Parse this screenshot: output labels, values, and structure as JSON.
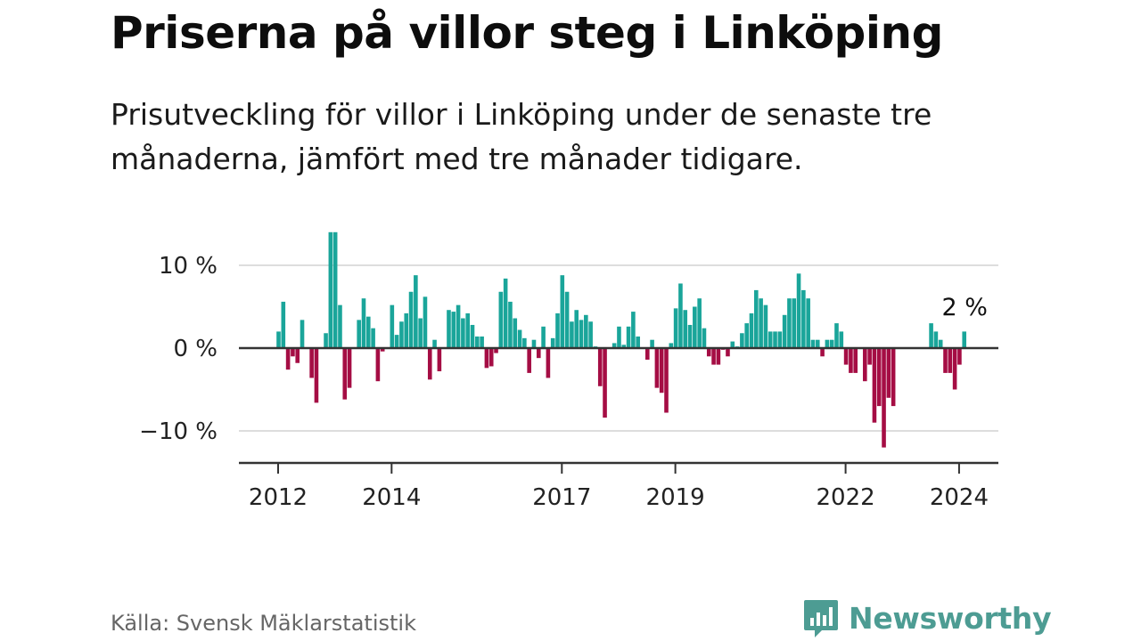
{
  "header": {
    "title": "Priserna på villor steg i Linköping",
    "subtitle": "Prisutveckling för villor i Linköping under de senaste tre månaderna, jämfört med tre månader tidigare."
  },
  "footer": {
    "source": "Källa: Svensk Mäklarstatistik",
    "brand": "Newsworthy",
    "brand_icon": "newsworthy-logo-icon"
  },
  "colors": {
    "positive": "#1aa59a",
    "negative": "#a50d44",
    "brand": "#4d9c93",
    "grid": "#dddddd",
    "axis": "#333333"
  },
  "chart_data": {
    "type": "bar",
    "title": "Priserna på villor steg i Linköping",
    "xlabel": "",
    "ylabel": "",
    "unit": "%",
    "start": "2012-01",
    "frequency": "monthly",
    "ylim": [
      -14,
      10
    ],
    "yticks": [
      {
        "value": 10,
        "label": "10 %"
      },
      {
        "value": 0,
        "label": "0 %"
      },
      {
        "value": -10,
        "label": "−10 %"
      }
    ],
    "xticks": [
      {
        "label": "2012",
        "index": 0
      },
      {
        "label": "2014",
        "index": 24
      },
      {
        "label": "2017",
        "index": 60
      },
      {
        "label": "2019",
        "index": 84
      },
      {
        "label": "2022",
        "index": 120
      },
      {
        "label": "2024",
        "index": 144
      }
    ],
    "values": [
      2,
      5.6,
      -2.6,
      -1,
      -1.8,
      3.4,
      0,
      -3.6,
      -6.6,
      0,
      1.8,
      14,
      14,
      5.2,
      -6.2,
      -4.8,
      0,
      3.4,
      6,
      3.8,
      2.4,
      -4,
      -0.4,
      0,
      5.2,
      1.6,
      3.2,
      4.2,
      6.8,
      8.8,
      3.6,
      6.2,
      -3.8,
      1,
      -2.8,
      0,
      4.6,
      4.4,
      5.2,
      3.6,
      4.2,
      2.8,
      1.4,
      1.4,
      -2.4,
      -2.2,
      -0.6,
      6.8,
      8.4,
      5.6,
      3.6,
      2.2,
      1.2,
      -3,
      1,
      -1.2,
      2.6,
      -3.6,
      1.2,
      4.2,
      8.8,
      6.8,
      3.2,
      4.6,
      3.4,
      4,
      3.2,
      0.2,
      -4.6,
      -8.4,
      0,
      0.6,
      2.6,
      0.4,
      2.6,
      4.4,
      1.4,
      0,
      -1.4,
      1,
      -4.8,
      -5.4,
      -7.8,
      0.6,
      4.8,
      7.8,
      4.6,
      2.8,
      5,
      6,
      2.4,
      -1,
      -2,
      -2,
      -0.2,
      -1,
      0.8,
      0.2,
      1.8,
      3,
      4.2,
      7,
      6,
      5.2,
      2,
      2,
      2,
      4,
      6,
      6,
      9,
      7,
      6,
      1,
      1,
      -1,
      1,
      1,
      3,
      2,
      -2,
      -3,
      -3,
      0,
      -4,
      -2,
      -9,
      -7,
      -12,
      -6,
      -7,
      0,
      0,
      0,
      0,
      0,
      0,
      0,
      3,
      2,
      1,
      -3,
      -3,
      -5,
      -2,
      2
    ],
    "last_value_label": "2 %"
  }
}
